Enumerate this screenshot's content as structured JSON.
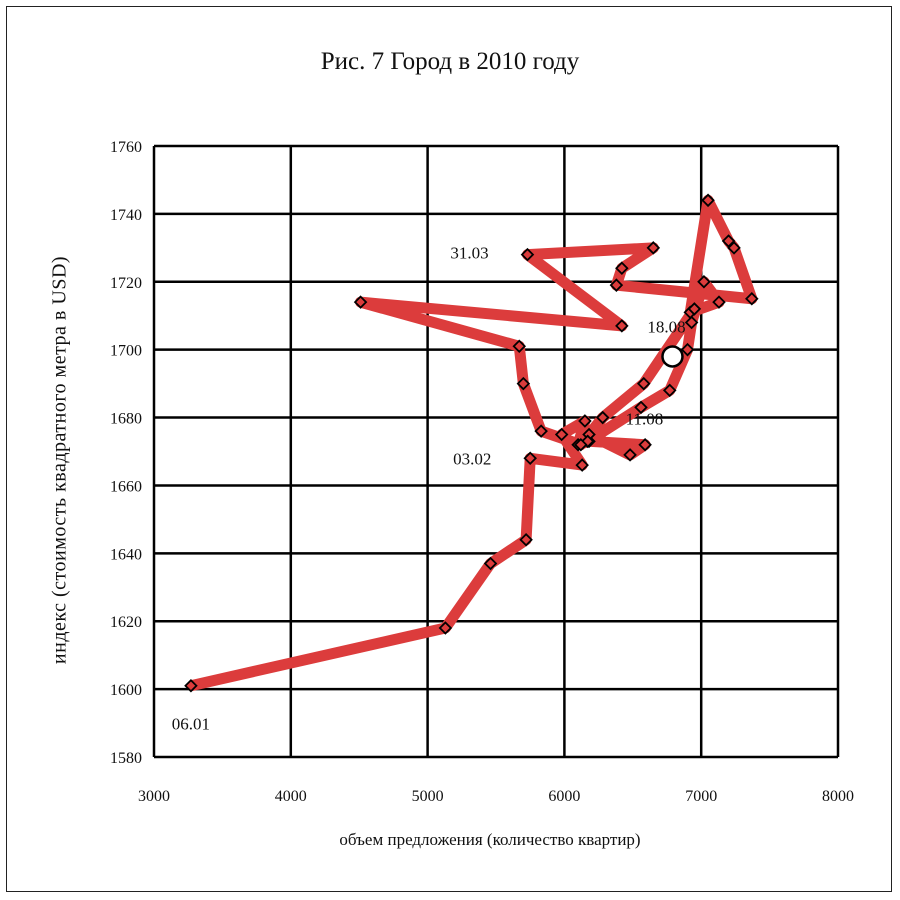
{
  "chart_data": {
    "type": "line",
    "title": "Рис. 7 Город в 2010 году",
    "xlabel": "объем предложения (количество квартир)",
    "ylabel": "индекс (стоимость квадратного метра в USD)",
    "xlim": [
      3000,
      8000
    ],
    "ylim": [
      1580,
      1760
    ],
    "xticks": [
      3000,
      4000,
      5000,
      6000,
      7000,
      8000
    ],
    "yticks": [
      1580,
      1600,
      1620,
      1640,
      1660,
      1680,
      1700,
      1720,
      1740,
      1760
    ],
    "grid": true,
    "series": [
      {
        "x": [
          3270,
          5130,
          5460,
          5720,
          5750,
          6130,
          5980,
          6150,
          6100,
          6180,
          6590,
          6480,
          6180,
          6170,
          6560,
          6770,
          6900,
          6930,
          7020,
          7130,
          6920,
          7050,
          7200,
          7240,
          7370,
          6380,
          6420,
          6650,
          5730,
          6420,
          4510,
          5670,
          5700,
          5830,
          6120,
          6280,
          6580,
          6950
        ],
        "y": [
          1601,
          1618,
          1637,
          1644,
          1668,
          1666,
          1675,
          1679,
          1672,
          1673,
          1672,
          1669,
          1675,
          1673,
          1683,
          1688,
          1700,
          1708,
          1720,
          1714,
          1711,
          1744,
          1732,
          1730,
          1715,
          1719,
          1724,
          1730,
          1728,
          1707,
          1714,
          1701,
          1690,
          1676,
          1672,
          1680,
          1690,
          1712
        ],
        "color": "#dc3c3c"
      }
    ],
    "marker_color": "#dc3c3c",
    "highlight_point": {
      "x": 6790,
      "y": 1698
    },
    "annotations": [
      {
        "text": "06.01",
        "x": 3270,
        "y": 1601
      },
      {
        "text": "03.02",
        "x": 5750,
        "y": 1668
      },
      {
        "text": "31.03",
        "x": 5730,
        "y": 1728
      },
      {
        "text": "18.08",
        "x": 6790,
        "y": 1698
      },
      {
        "text": "11.08",
        "x": 6600,
        "y": 1672
      }
    ]
  }
}
